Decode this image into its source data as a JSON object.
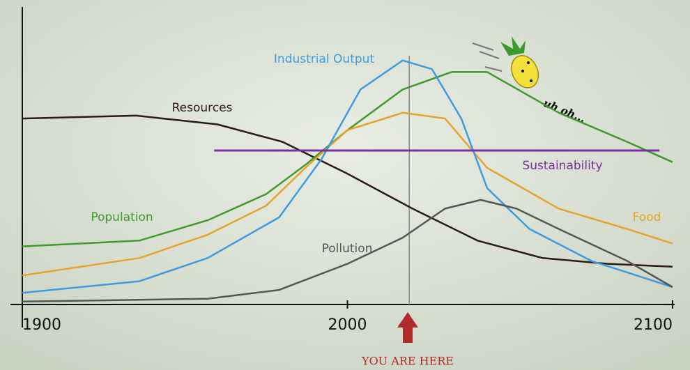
{
  "chart_data": {
    "type": "line",
    "xlim": [
      1900,
      2100
    ],
    "xticks": [
      1900,
      2000,
      2100
    ],
    "ylim": [
      0,
      100
    ],
    "series": [
      {
        "name": "Resources",
        "color": "#2a1a10",
        "x": [
          1900,
          1935,
          1960,
          1980,
          2000,
          2020,
          2040,
          2060,
          2080,
          2100
        ],
        "values": [
          64,
          65,
          62,
          56,
          45,
          33,
          22,
          16,
          14,
          13
        ]
      },
      {
        "name": "Population",
        "color": "#3f9a2c",
        "x": [
          1900,
          1936,
          1957,
          1975,
          1987,
          2000,
          2017,
          2032,
          2043,
          2065,
          2086,
          2100
        ],
        "values": [
          20,
          22,
          29,
          38,
          48,
          60,
          74,
          80,
          80,
          66,
          56,
          49
        ]
      },
      {
        "name": "Food",
        "color": "#e8a12a",
        "x": [
          1900,
          1936,
          1957,
          1975,
          1987,
          2000,
          2017,
          2030,
          2043,
          2065,
          2086,
          2100
        ],
        "values": [
          10,
          16,
          24,
          34,
          47,
          60,
          66,
          64,
          47,
          33,
          26,
          21
        ]
      },
      {
        "name": "Industrial Output",
        "color": "#3d9be0",
        "x": [
          1900,
          1936,
          1957,
          1979,
          1992,
          2004,
          2017,
          2026,
          2035,
          2043,
          2056,
          2075,
          2100
        ],
        "values": [
          4,
          8,
          16,
          30,
          50,
          74,
          84,
          81,
          64,
          40,
          26,
          15,
          6
        ]
      },
      {
        "name": "Pollution",
        "color": "#555555",
        "x": [
          1900,
          1957,
          1979,
          2000,
          2017,
          2030,
          2041,
          2052,
          2065,
          2086,
          2100
        ],
        "values": [
          1,
          2,
          5,
          14,
          23,
          33,
          36,
          33,
          26,
          15,
          6
        ]
      },
      {
        "name": "Sustainability",
        "color": "#7a2ea0",
        "x": [
          1959,
          2096
        ],
        "values": [
          53,
          53
        ]
      }
    ],
    "annotations": [
      {
        "text": "YOU ARE HERE",
        "x": 2019
      },
      {
        "text": "uh oh..."
      }
    ]
  }
}
